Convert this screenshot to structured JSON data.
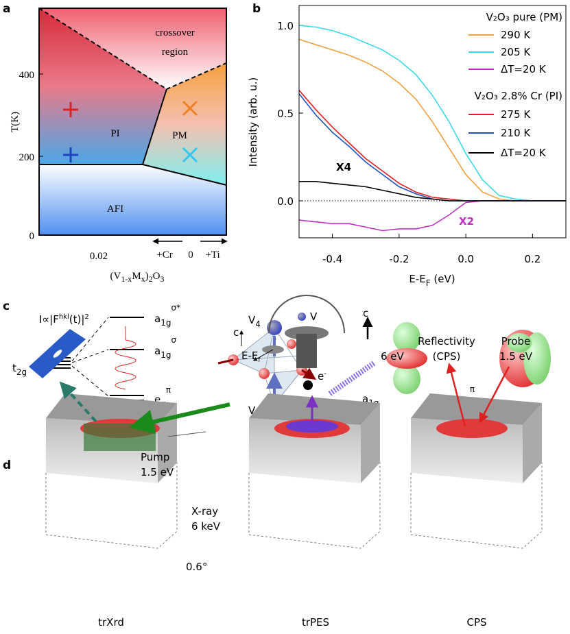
{
  "panel_labels": [
    "a",
    "b",
    "c",
    "d"
  ],
  "panel_a": {
    "crossover_label": [
      "crossover",
      "region"
    ],
    "pi_label": "PI",
    "pm_label": "PM",
    "afi_label": "AFI",
    "y_label": "T(K)",
    "y_ticks": [
      "400",
      "200",
      "0"
    ],
    "x_tick": "0.02",
    "doping": [
      "+Cr",
      "0",
      "+Ti"
    ],
    "x_label": [
      "(V",
      "1-x",
      "M",
      "x",
      ")",
      "2",
      "O",
      "3"
    ]
  },
  "chart_data": {
    "type": "line",
    "x_label": [
      "E-E",
      "F",
      " (eV)"
    ],
    "y_label": "Intensity (arb. u.)",
    "x": [
      -0.5,
      -0.45,
      -0.4,
      -0.35,
      -0.3,
      -0.25,
      -0.2,
      -0.15,
      -0.1,
      -0.05,
      0,
      0.05,
      0.1,
      0.15,
      0.2,
      0.25,
      0.3
    ],
    "series": [
      {
        "name": "290 K",
        "color": "#f0a040",
        "values": [
          0.92,
          0.89,
          0.86,
          0.83,
          0.79,
          0.74,
          0.67,
          0.58,
          0.45,
          0.3,
          0.15,
          0.05,
          0.01,
          0,
          0,
          0,
          0
        ]
      },
      {
        "name": "205 K",
        "color": "#3cd8e8",
        "values": [
          1.0,
          0.99,
          0.97,
          0.94,
          0.9,
          0.86,
          0.8,
          0.72,
          0.6,
          0.45,
          0.27,
          0.12,
          0.03,
          0.01,
          0,
          0,
          0
        ]
      },
      {
        "name": "ΔT=20 K",
        "color": "#c030c0",
        "values": [
          -0.11,
          -0.12,
          -0.13,
          -0.13,
          -0.15,
          -0.17,
          -0.16,
          -0.16,
          -0.14,
          -0.08,
          -0.01,
          0,
          0,
          0,
          0,
          0,
          0
        ]
      },
      {
        "name": "275 K",
        "color": "#e02020",
        "values": [
          0.63,
          0.52,
          0.42,
          0.33,
          0.24,
          0.17,
          0.1,
          0.05,
          0.02,
          0.01,
          0,
          0,
          0,
          0,
          0,
          0,
          0
        ]
      },
      {
        "name": "210 K",
        "color": "#2050c0",
        "values": [
          0.61,
          0.49,
          0.39,
          0.31,
          0.22,
          0.15,
          0.08,
          0.04,
          0.01,
          0,
          0,
          0,
          0,
          0,
          0,
          0,
          0
        ]
      },
      {
        "name": "ΔT=20 K",
        "color": "#000000",
        "values": [
          0.11,
          0.11,
          0.1,
          0.09,
          0.08,
          0.06,
          0.04,
          0.02,
          0.01,
          0,
          0,
          0,
          0,
          0,
          0,
          0,
          0
        ]
      }
    ],
    "legend_titles": [
      "V₂O₃ pure (PM)",
      "V₂O₃ 2.8% Cr (PI)"
    ],
    "legend": "upper right",
    "annotations": [
      {
        "text": "X4",
        "color": "#000000"
      },
      {
        "text": "X2",
        "color": "#c030c0"
      }
    ],
    "xlim": [
      -0.5,
      0.3
    ],
    "xticks": [
      -0.4,
      -0.2,
      {
        "value": 0,
        "label": "0.0"
      },
      0.2
    ],
    "ylim": [
      -0.211,
      1.113
    ],
    "yticks": [
      {
        "value": 0,
        "label": "0.0"
      },
      0.5,
      {
        "value": 1,
        "label": "1.0"
      }
    ]
  },
  "panel_c": {
    "t2g": [
      "t",
      "2g"
    ],
    "levels": [
      [
        "a",
        "1g",
        "σ*"
      ],
      [
        "a",
        "1g",
        "σ"
      ],
      [
        "e",
        "g",
        "π"
      ]
    ],
    "v4": [
      "V",
      "4"
    ],
    "v1": [
      "V",
      "1"
    ],
    "atom_legend": [
      "V",
      "O"
    ],
    "axis_labels": [
      "c",
      "c"
    ],
    "orbitals": [
      [
        "a",
        "1g"
      ],
      [
        "e",
        "g",
        "π"
      ]
    ]
  },
  "panel_d": {
    "formula": [
      "I∝|F",
      "hkl",
      "(t)|",
      "2"
    ],
    "pump": [
      "Pump",
      "1.5 eV"
    ],
    "xray": [
      "X-ray",
      "6 keV"
    ],
    "angle": "0.6°",
    "energy_axis": [
      "E-E",
      "f"
    ],
    "electron": [
      "e",
      "-"
    ],
    "photon": "6 eV",
    "reflectivity": [
      "Reflectivity",
      "(CPS)"
    ],
    "probe": [
      "Probe",
      "1.5 eV"
    ],
    "methods": [
      "trXrd",
      "trPES",
      "CPS"
    ]
  }
}
